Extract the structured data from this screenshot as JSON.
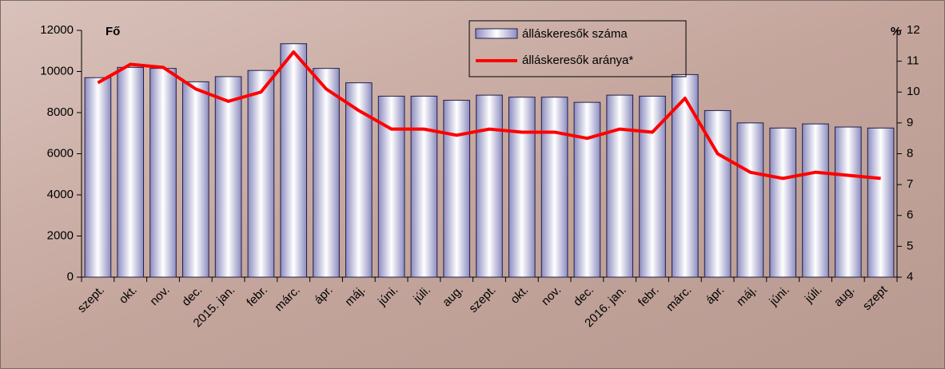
{
  "chart_data": {
    "type": "bar",
    "categories": [
      "szept.",
      "okt.",
      "nov.",
      "dec.",
      "2015. jan.",
      "febr.",
      "márc.",
      "ápr.",
      "máj.",
      "júni.",
      "júli.",
      "aug.",
      "szept.",
      "okt.",
      "nov.",
      "dec.",
      "2016. jan.",
      "febr.",
      "márc.",
      "ápr.",
      "máj.",
      "júni.",
      "júli.",
      "aug.",
      "szept"
    ],
    "series": [
      {
        "name": "álláskeresők száma",
        "type": "bar",
        "color": "#8c8cc0",
        "values": [
          9700,
          10200,
          10150,
          9500,
          9750,
          10050,
          11350,
          10150,
          9450,
          8800,
          8800,
          8600,
          8850,
          8750,
          8750,
          8500,
          8850,
          8800,
          9850,
          8100,
          7500,
          7250,
          7450,
          7300,
          7250
        ]
      },
      {
        "name": "álláskeresők aránya*",
        "type": "line",
        "axis": "y2",
        "color": "#ff0000",
        "values": [
          10.3,
          10.9,
          10.8,
          10.1,
          9.7,
          10.0,
          11.3,
          10.1,
          9.4,
          8.8,
          8.8,
          8.6,
          8.8,
          8.7,
          8.7,
          8.5,
          8.8,
          8.7,
          9.8,
          8.0,
          7.4,
          7.2,
          7.4,
          7.3,
          7.2
        ]
      }
    ],
    "ylabel": "Fő",
    "y2label": "%",
    "ylim": [
      0,
      12000
    ],
    "yticks": [
      0,
      2000,
      4000,
      6000,
      8000,
      10000,
      12000
    ],
    "y2lim": [
      4,
      12
    ],
    "y2ticks": [
      4,
      5,
      6,
      7,
      8,
      9,
      10,
      11,
      12
    ],
    "legend": "top"
  }
}
